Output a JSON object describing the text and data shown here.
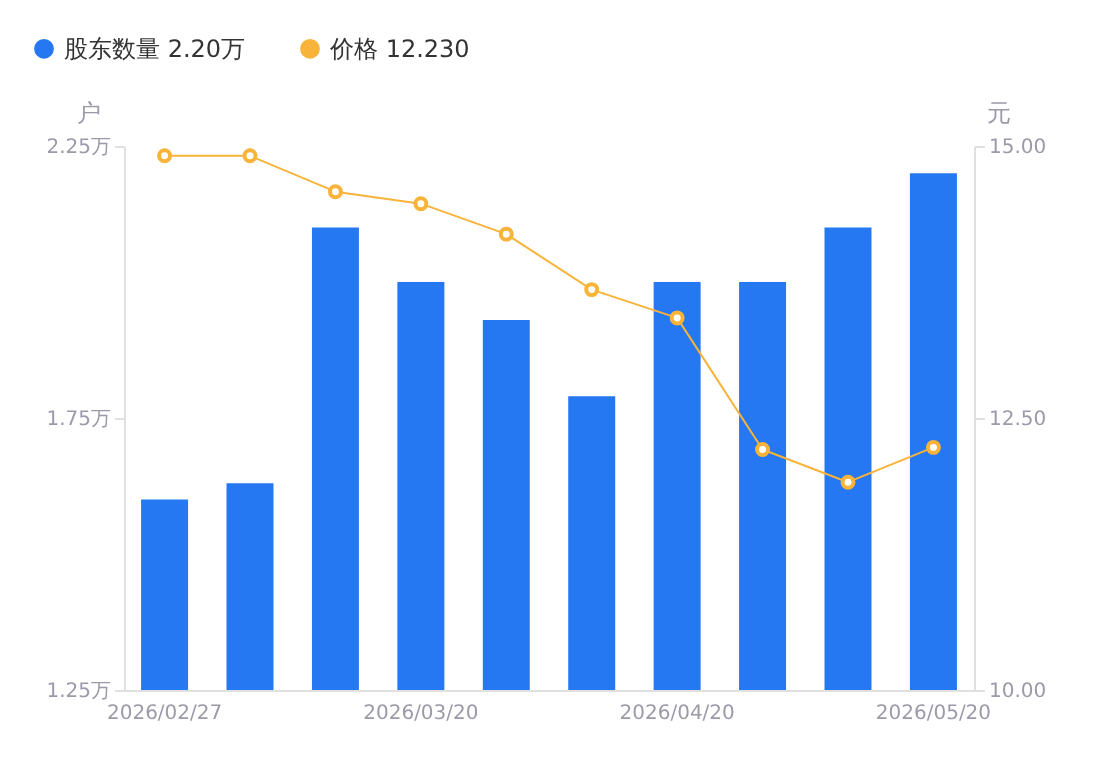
{
  "chart_data": {
    "type": "bar",
    "categories": [
      "2026/02/27",
      null,
      null,
      "2026/03/20",
      null,
      null,
      "2026/04/20",
      null,
      null,
      "2026/05/20"
    ],
    "ylabel": "户",
    "y2label": "元",
    "series": [
      {
        "name": "股东数量 2.20万",
        "color": "#2577f2",
        "values": [
          1.6,
          1.63,
          2.1,
          2.0,
          1.93,
          1.79,
          2.0,
          2.0,
          2.1,
          2.2
        ]
      },
      {
        "name": "价格 12.230",
        "type": "line",
        "axis": "y2",
        "color": "#f8b33a",
        "marker": "circle",
        "values": [
          14.91,
          14.91,
          14.58,
          14.47,
          14.19,
          13.68,
          13.42,
          12.21,
          11.91,
          12.23
        ]
      }
    ],
    "ylim": [
      1.25,
      2.25
    ],
    "yticks": [
      {
        "value": 1.25,
        "label": "1.25万"
      },
      {
        "value": 1.75,
        "label": "1.75万"
      },
      {
        "value": 2.25,
        "label": "2.25万"
      }
    ],
    "y2lim": [
      10,
      15
    ],
    "y2ticks": [
      {
        "value": 10,
        "label": "10.00"
      },
      {
        "value": 12.5,
        "label": "12.50"
      },
      {
        "value": 15,
        "label": "15.00"
      }
    ],
    "legend": "top left",
    "grid": false
  }
}
